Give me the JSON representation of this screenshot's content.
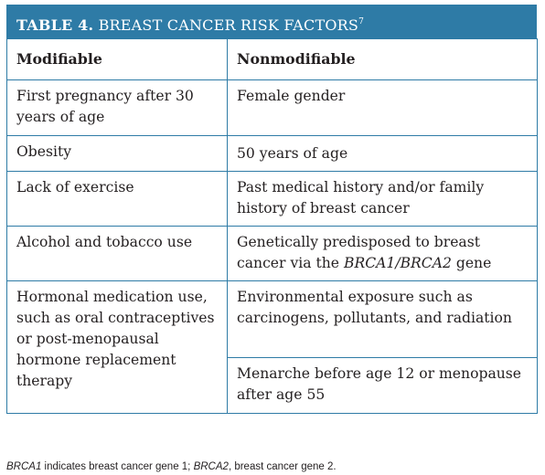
{
  "table": {
    "title_lead": "TABLE 4.",
    "title_rest": "BREAST CANCER RISK FACTORS",
    "title_ref": "7",
    "headers": {
      "modifiable": "Modifiable",
      "nonmodifiable": "Nonmodifiable"
    },
    "rows": [
      {
        "modifiable": "First pregnancy after 30 years of age",
        "nonmodifiable": "Female gender"
      },
      {
        "modifiable": "Obesity",
        "nonmodifiable": "50 years of age"
      },
      {
        "modifiable": "Lack of exercise",
        "nonmodifiable": "Past medical history and/or family history of breast cancer"
      },
      {
        "modifiable": "Alcohol and tobacco use",
        "nonmodifiable_pre": "Genetically predisposed to breast cancer via the ",
        "nonmodifiable_gene": "BRCA1/BRCA2",
        "nonmodifiable_post": " gene"
      },
      {
        "modifiable": "Hormonal medication use, such as oral contraceptives or post-menopausal hormone replacement therapy",
        "nonmodifiable": "Environmental exposure such as carcinogens, pollutants, and radiation"
      },
      {
        "nonmodifiable": "Menarche before age 12 or menopause after age 55"
      }
    ],
    "border_color": "#2e7ba6"
  },
  "footnote": {
    "gene1": "BRCA1",
    "text1": " indicates breast cancer gene 1; ",
    "gene2": "BRCA2",
    "text2": ", breast cancer gene 2."
  }
}
